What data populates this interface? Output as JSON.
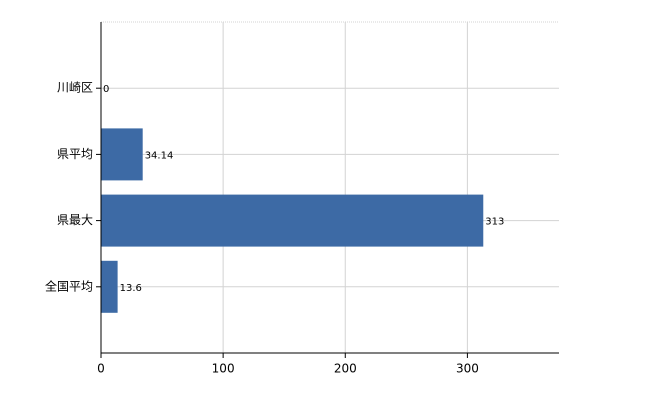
{
  "chart_data": {
    "type": "bar",
    "orientation": "horizontal",
    "categories": [
      "川崎区",
      "県平均",
      "県最大",
      "全国平均"
    ],
    "values": [
      0,
      34.14,
      313,
      13.6
    ],
    "color": "#3d6aa5",
    "xlim": [
      0,
      375
    ],
    "xticks": [
      0,
      100,
      200,
      300
    ],
    "grid": true
  }
}
